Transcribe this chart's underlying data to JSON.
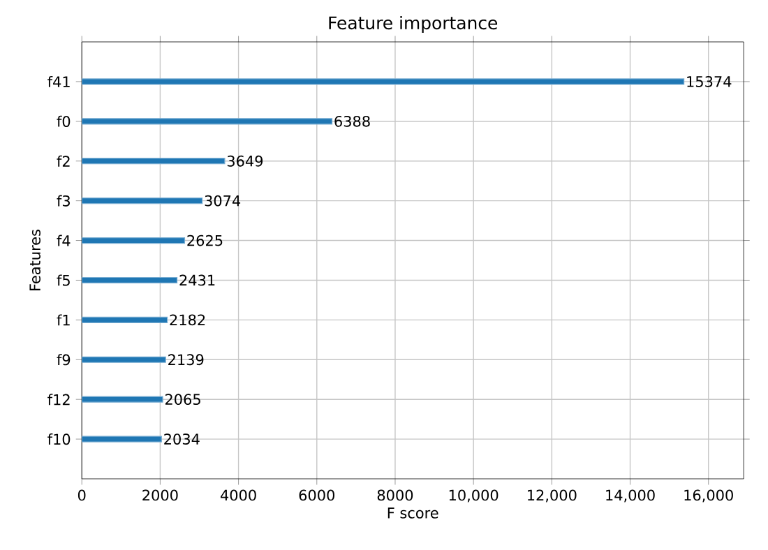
{
  "chart_data": {
    "type": "bar",
    "orientation": "horizontal",
    "title": "Feature importance",
    "xlabel": "F score",
    "ylabel": "Features",
    "categories": [
      "f41",
      "f0",
      "f2",
      "f3",
      "f4",
      "f5",
      "f1",
      "f9",
      "f12",
      "f10"
    ],
    "values": [
      15374,
      6388,
      3649,
      3074,
      2625,
      2431,
      2182,
      2139,
      2065,
      2034
    ],
    "color": "#1f77b4",
    "data_labels": true,
    "grid": true,
    "xlim": [
      0,
      16900
    ],
    "xticks": [
      0,
      2000,
      4000,
      6000,
      8000,
      {
        "value": 10000,
        "label": "10,000"
      },
      {
        "value": 12000,
        "label": "12,000"
      },
      {
        "value": 14000,
        "label": "14,000"
      },
      {
        "value": 16000,
        "label": "16,000"
      }
    ]
  }
}
